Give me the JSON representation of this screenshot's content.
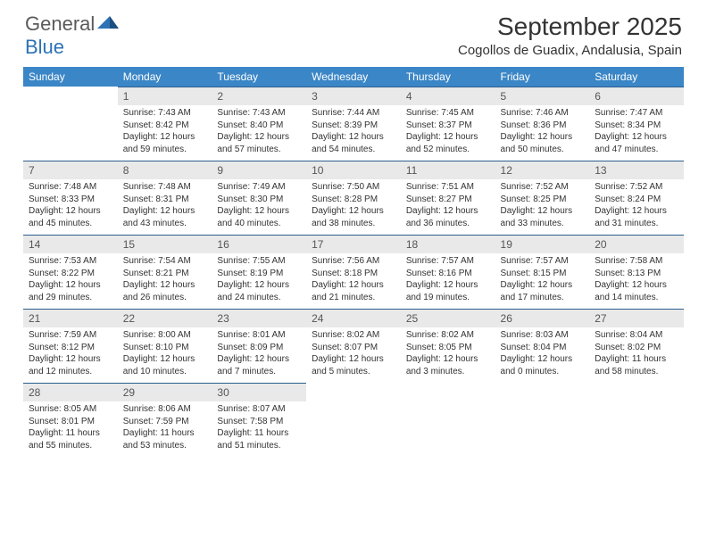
{
  "logo": {
    "text1": "General",
    "text2": "Blue"
  },
  "title": "September 2025",
  "location": "Cogollos de Guadix, Andalusia, Spain",
  "colors": {
    "header_bg": "#3b86c6",
    "header_text": "#ffffff",
    "daynum_bg": "#e9e9e9",
    "daynum_text": "#555555",
    "rule": "#2d5f8f",
    "body_text": "#333333",
    "logo_gray": "#5a5a5a",
    "logo_blue": "#2d72b5",
    "background": "#ffffff"
  },
  "typography": {
    "title_fontsize": 28,
    "location_fontsize": 15,
    "dayheader_fontsize": 12,
    "daynum_fontsize": 12,
    "body_fontsize": 10
  },
  "layout": {
    "columns": 7,
    "rows": 5,
    "start_day_index": 1
  },
  "day_headers": [
    "Sunday",
    "Monday",
    "Tuesday",
    "Wednesday",
    "Thursday",
    "Friday",
    "Saturday"
  ],
  "days": [
    {
      "n": 1,
      "sunrise": "7:43 AM",
      "sunset": "8:42 PM",
      "daylight": "12 hours and 59 minutes."
    },
    {
      "n": 2,
      "sunrise": "7:43 AM",
      "sunset": "8:40 PM",
      "daylight": "12 hours and 57 minutes."
    },
    {
      "n": 3,
      "sunrise": "7:44 AM",
      "sunset": "8:39 PM",
      "daylight": "12 hours and 54 minutes."
    },
    {
      "n": 4,
      "sunrise": "7:45 AM",
      "sunset": "8:37 PM",
      "daylight": "12 hours and 52 minutes."
    },
    {
      "n": 5,
      "sunrise": "7:46 AM",
      "sunset": "8:36 PM",
      "daylight": "12 hours and 50 minutes."
    },
    {
      "n": 6,
      "sunrise": "7:47 AM",
      "sunset": "8:34 PM",
      "daylight": "12 hours and 47 minutes."
    },
    {
      "n": 7,
      "sunrise": "7:48 AM",
      "sunset": "8:33 PM",
      "daylight": "12 hours and 45 minutes."
    },
    {
      "n": 8,
      "sunrise": "7:48 AM",
      "sunset": "8:31 PM",
      "daylight": "12 hours and 43 minutes."
    },
    {
      "n": 9,
      "sunrise": "7:49 AM",
      "sunset": "8:30 PM",
      "daylight": "12 hours and 40 minutes."
    },
    {
      "n": 10,
      "sunrise": "7:50 AM",
      "sunset": "8:28 PM",
      "daylight": "12 hours and 38 minutes."
    },
    {
      "n": 11,
      "sunrise": "7:51 AM",
      "sunset": "8:27 PM",
      "daylight": "12 hours and 36 minutes."
    },
    {
      "n": 12,
      "sunrise": "7:52 AM",
      "sunset": "8:25 PM",
      "daylight": "12 hours and 33 minutes."
    },
    {
      "n": 13,
      "sunrise": "7:52 AM",
      "sunset": "8:24 PM",
      "daylight": "12 hours and 31 minutes."
    },
    {
      "n": 14,
      "sunrise": "7:53 AM",
      "sunset": "8:22 PM",
      "daylight": "12 hours and 29 minutes."
    },
    {
      "n": 15,
      "sunrise": "7:54 AM",
      "sunset": "8:21 PM",
      "daylight": "12 hours and 26 minutes."
    },
    {
      "n": 16,
      "sunrise": "7:55 AM",
      "sunset": "8:19 PM",
      "daylight": "12 hours and 24 minutes."
    },
    {
      "n": 17,
      "sunrise": "7:56 AM",
      "sunset": "8:18 PM",
      "daylight": "12 hours and 21 minutes."
    },
    {
      "n": 18,
      "sunrise": "7:57 AM",
      "sunset": "8:16 PM",
      "daylight": "12 hours and 19 minutes."
    },
    {
      "n": 19,
      "sunrise": "7:57 AM",
      "sunset": "8:15 PM",
      "daylight": "12 hours and 17 minutes."
    },
    {
      "n": 20,
      "sunrise": "7:58 AM",
      "sunset": "8:13 PM",
      "daylight": "12 hours and 14 minutes."
    },
    {
      "n": 21,
      "sunrise": "7:59 AM",
      "sunset": "8:12 PM",
      "daylight": "12 hours and 12 minutes."
    },
    {
      "n": 22,
      "sunrise": "8:00 AM",
      "sunset": "8:10 PM",
      "daylight": "12 hours and 10 minutes."
    },
    {
      "n": 23,
      "sunrise": "8:01 AM",
      "sunset": "8:09 PM",
      "daylight": "12 hours and 7 minutes."
    },
    {
      "n": 24,
      "sunrise": "8:02 AM",
      "sunset": "8:07 PM",
      "daylight": "12 hours and 5 minutes."
    },
    {
      "n": 25,
      "sunrise": "8:02 AM",
      "sunset": "8:05 PM",
      "daylight": "12 hours and 3 minutes."
    },
    {
      "n": 26,
      "sunrise": "8:03 AM",
      "sunset": "8:04 PM",
      "daylight": "12 hours and 0 minutes."
    },
    {
      "n": 27,
      "sunrise": "8:04 AM",
      "sunset": "8:02 PM",
      "daylight": "11 hours and 58 minutes."
    },
    {
      "n": 28,
      "sunrise": "8:05 AM",
      "sunset": "8:01 PM",
      "daylight": "11 hours and 55 minutes."
    },
    {
      "n": 29,
      "sunrise": "8:06 AM",
      "sunset": "7:59 PM",
      "daylight": "11 hours and 53 minutes."
    },
    {
      "n": 30,
      "sunrise": "8:07 AM",
      "sunset": "7:58 PM",
      "daylight": "11 hours and 51 minutes."
    }
  ],
  "labels": {
    "sunrise": "Sunrise:",
    "sunset": "Sunset:",
    "daylight": "Daylight:"
  }
}
